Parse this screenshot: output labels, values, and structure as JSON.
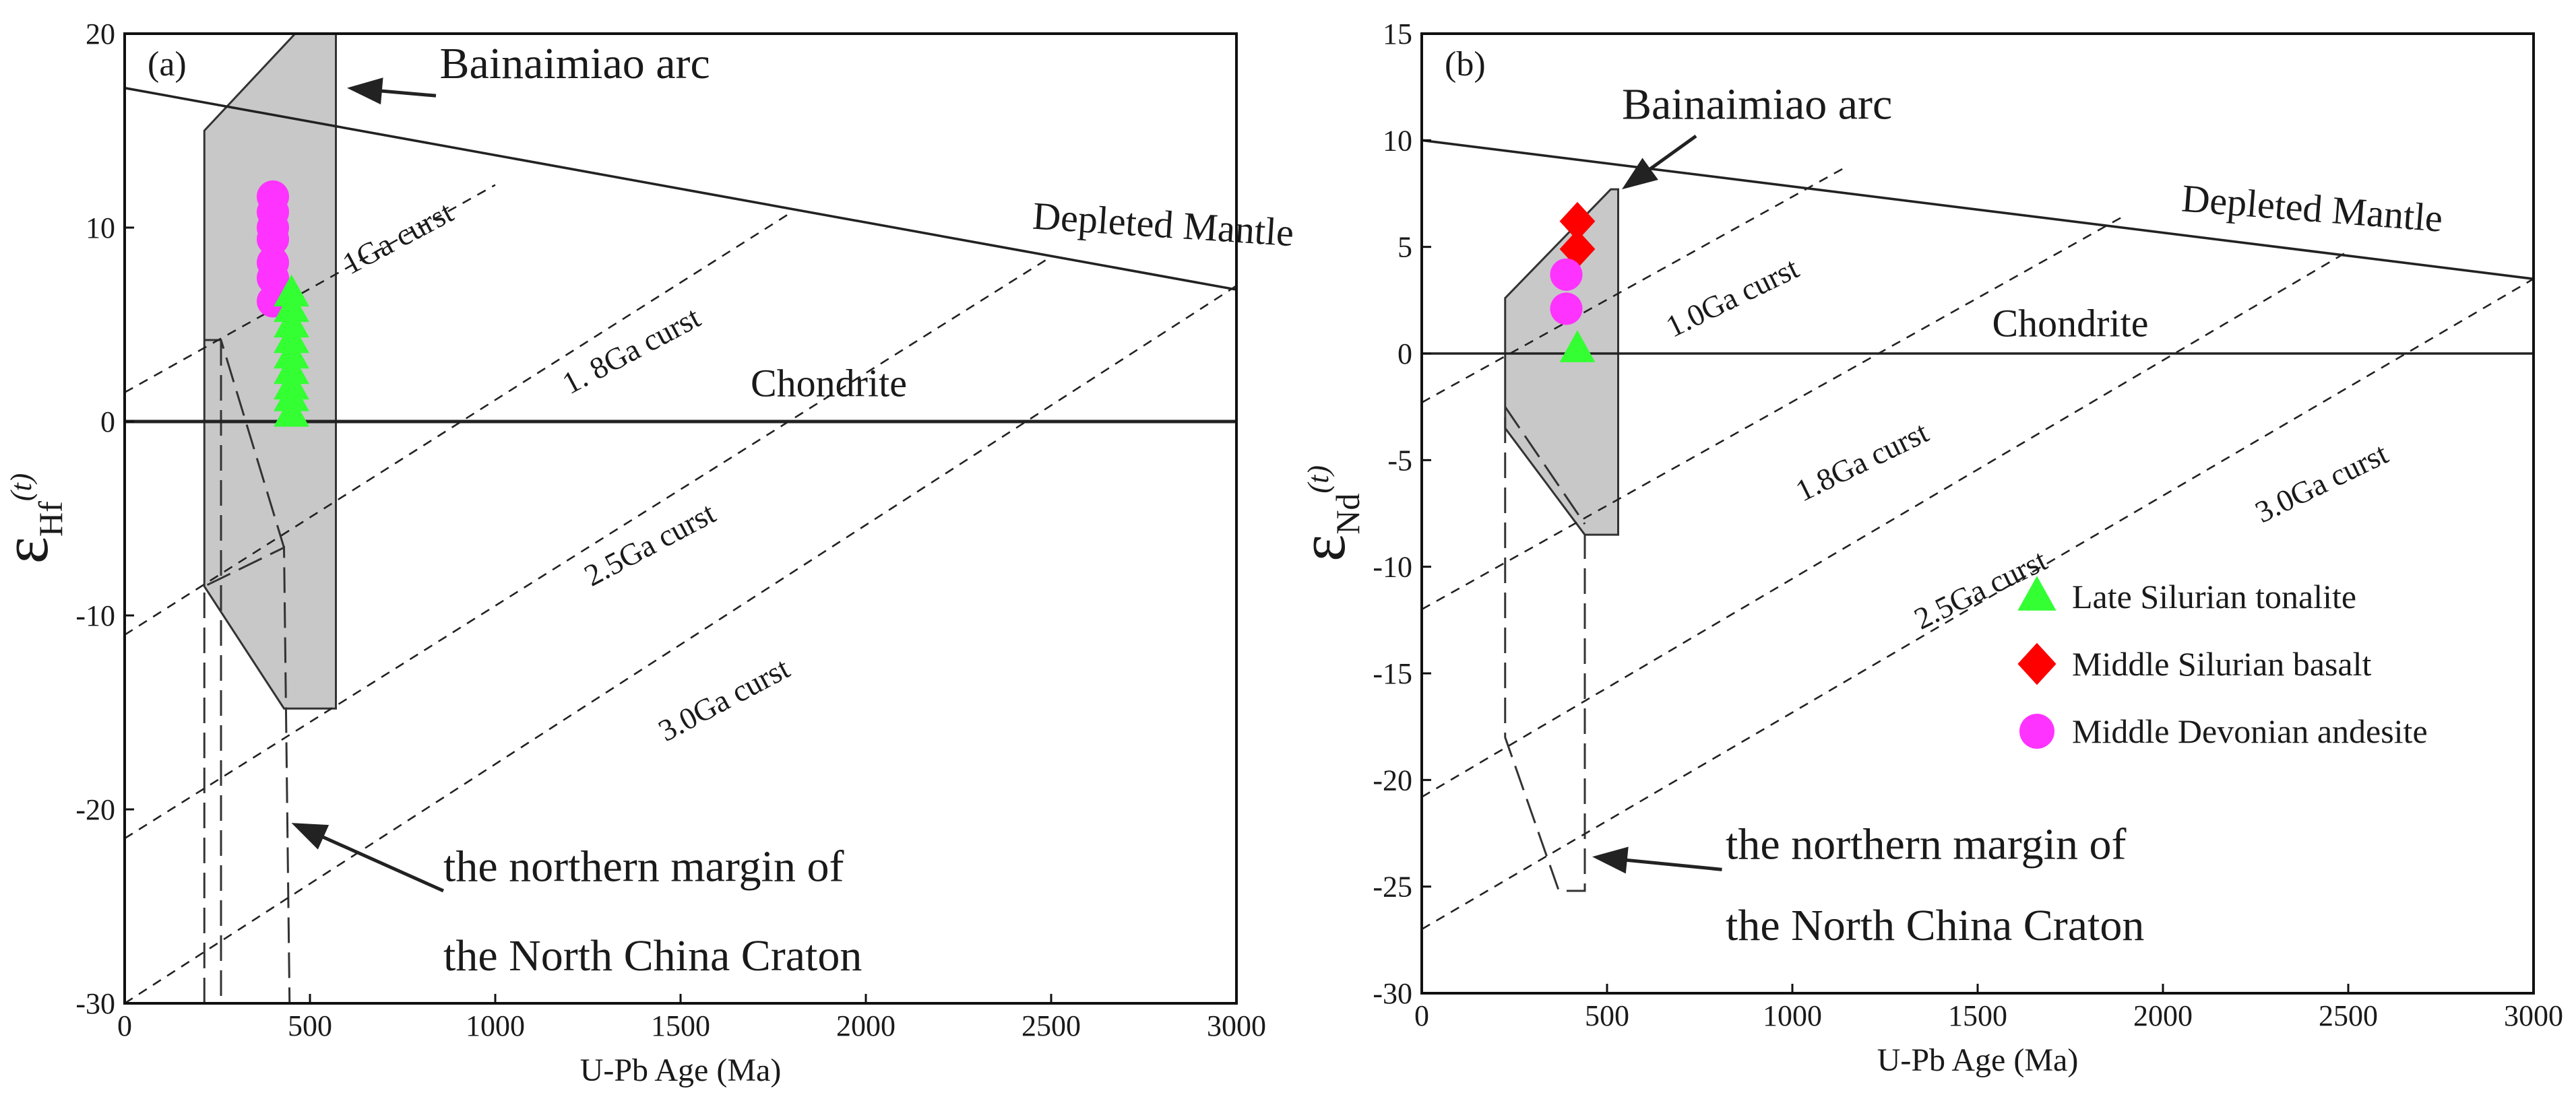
{
  "chart_data": [
    {
      "type": "scatter",
      "panel_label": "(a)",
      "xlabel": "U-Pb Age (Ma)",
      "ylabel_symbol": "ε",
      "ylabel_sub": "Hf",
      "ylabel_t": "(t)",
      "xlim": [
        0,
        3000
      ],
      "ylim": [
        -30,
        20
      ],
      "xticks": [
        "0",
        "500",
        "1000",
        "1500",
        "2000",
        "2500",
        "3000"
      ],
      "xtick_values": [
        0,
        500,
        1000,
        1500,
        2000,
        2500,
        3000
      ],
      "yticks": [
        "-30",
        "-20",
        "-10",
        "0",
        "10",
        "20"
      ],
      "ytick_values": [
        -30,
        -20,
        -10,
        0,
        10,
        20
      ],
      "reference_lines": [
        {
          "name": "Depleted Mantle",
          "label": "Depleted Mantle",
          "points": [
            [
              0,
              17.2
            ],
            [
              3000,
              6.8
            ]
          ],
          "style": "solid",
          "label_at": [
            2800,
            9.5
          ],
          "rotate": 3.8
        },
        {
          "name": "Chondrite",
          "label": "Chondrite",
          "points": [
            [
              0,
              0
            ],
            [
              3000,
              0
            ]
          ],
          "style": "solid",
          "label_at": [
            1900,
            1.3
          ],
          "rotate": 0
        },
        {
          "name": "1Ga curst",
          "label": "1Ga curst",
          "points": [
            [
              0,
              1.5
            ],
            [
              1000,
              12.2
            ]
          ],
          "style": "dashed",
          "label_at": [
            750,
            9
          ],
          "rotate": -28
        },
        {
          "name": "1.8Ga curst",
          "label": "1. 8Ga curst",
          "points": [
            [
              0,
              -11
            ],
            [
              1800,
              10.8
            ]
          ],
          "style": "dashed",
          "label_at": [
            1380,
            3.2
          ],
          "rotate": -28
        },
        {
          "name": "2.5Ga curst",
          "label": "2.5Ga curst",
          "points": [
            [
              0,
              -21.5
            ],
            [
              2500,
              8.5
            ]
          ],
          "style": "dashed",
          "label_at": [
            1430,
            -6.8
          ],
          "rotate": -28
        },
        {
          "name": "3.0Ga curst",
          "label": "3.0Ga curst",
          "points": [
            [
              0,
              -30
            ],
            [
              3000,
              7
            ]
          ],
          "style": "dashed",
          "label_at": [
            1630,
            -14.8
          ],
          "rotate": -28
        }
      ],
      "regions": [
        {
          "name": "Bainaimiao arc",
          "label": "Bainaimiao arc",
          "style": "filled",
          "polygon": [
            [
              215,
              15
            ],
            [
              460,
              20
            ],
            [
              570,
              20
            ],
            [
              570,
              -14.8
            ],
            [
              430,
              -14.8
            ],
            [
              215,
              -8.5
            ]
          ]
        },
        {
          "name": "the northern margin of the North China Craton",
          "label": "the northern margin of\nthe North China Craton",
          "style": "dashed",
          "polygon": [
            [
              215,
              -30
            ],
            [
              215,
              -8.5
            ],
            [
              430,
              -6.5
            ],
            [
              445,
              -30
            ]
          ]
        }
      ],
      "region_inner_dashes": [
        {
          "points": [
            [
              215,
              4.2
            ],
            [
              260,
              4.2
            ],
            [
              430,
              -6.5
            ]
          ]
        },
        {
          "points": [
            [
              260,
              4.2
            ],
            [
              260,
              -30
            ]
          ]
        }
      ],
      "annotations": [
        {
          "text": "Bainaimiao arc",
          "at": [
            850,
            17.7
          ],
          "arrow_from": [
            840,
            16.8
          ],
          "arrow_to": [
            600,
            17.2
          ]
        },
        {
          "text": "the northern margin of",
          "at": [
            860,
            -23.7
          ],
          "arrow_from": [
            860,
            -24.2
          ],
          "arrow_to": [
            450,
            -20.7
          ]
        },
        {
          "text": "the North China Craton",
          "at": [
            860,
            -28.3
          ]
        }
      ],
      "series": [
        {
          "name": "Middle Devonian andesite",
          "marker": "circle",
          "color": "#ff33ff",
          "points": [
            [
              400,
              11.6
            ],
            [
              400,
              10.8
            ],
            [
              400,
              10.0
            ],
            [
              400,
              9.4
            ],
            [
              400,
              8.2
            ],
            [
              400,
              7.4
            ],
            [
              400,
              6.2
            ]
          ]
        },
        {
          "name": "Late Silurian tonalite",
          "marker": "triangle",
          "color": "#33ff33",
          "points": [
            [
              450,
              6.6
            ],
            [
              450,
              5.8
            ],
            [
              450,
              5.0
            ],
            [
              450,
              4.2
            ],
            [
              450,
              3.4
            ],
            [
              450,
              2.6
            ],
            [
              450,
              1.8
            ],
            [
              450,
              1.2
            ],
            [
              450,
              0.4
            ]
          ]
        }
      ]
    },
    {
      "type": "scatter",
      "panel_label": "(b)",
      "xlabel": "U-Pb Age (Ma)",
      "ylabel_symbol": "ε",
      "ylabel_sub": "Nd",
      "ylabel_t": "(t)",
      "xlim": [
        0,
        3000
      ],
      "ylim": [
        -30,
        15
      ],
      "xticks": [
        "0",
        "500",
        "1000",
        "1500",
        "2000",
        "2500",
        "3000"
      ],
      "xtick_values": [
        0,
        500,
        1000,
        1500,
        2000,
        2500,
        3000
      ],
      "yticks": [
        "-30",
        "-25",
        "-20",
        "-15",
        "-10",
        "-5",
        "0",
        "5",
        "10",
        "15"
      ],
      "ytick_values": [
        -30,
        -25,
        -20,
        -15,
        -10,
        -5,
        0,
        5,
        10,
        15
      ],
      "reference_lines": [
        {
          "name": "Depleted Mantle",
          "label": "Depleted Mantle",
          "points": [
            [
              0,
              10
            ],
            [
              3000,
              3.5
            ]
          ],
          "style": "solid",
          "label_at": [
            2400,
            6.2
          ],
          "rotate": 4.5
        },
        {
          "name": "Chondrite",
          "label": "Chondrite",
          "points": [
            [
              0,
              0
            ],
            [
              3000,
              0
            ]
          ],
          "style": "solid",
          "label_at": [
            1750,
            0.8
          ],
          "rotate": 0
        },
        {
          "name": "1.0Ga curst",
          "label": "1.0Ga curst",
          "points": [
            [
              0,
              -2.3
            ],
            [
              1150,
              8.8
            ]
          ],
          "style": "dashed",
          "label_at": [
            850,
            2.2
          ],
          "rotate": -26
        },
        {
          "name": "1.8Ga curst",
          "label": "1.8Ga curst",
          "points": [
            [
              0,
              -12
            ],
            [
              1900,
              6.5
            ]
          ],
          "style": "dashed",
          "label_at": [
            1200,
            -5.5
          ],
          "rotate": -26
        },
        {
          "name": "2.5Ga curst",
          "label": "2.5Ga curst",
          "points": [
            [
              0,
              -20.8
            ],
            [
              2500,
              4.8
            ]
          ],
          "style": "dashed",
          "label_at": [
            1520,
            -11.5
          ],
          "rotate": -26
        },
        {
          "name": "3.0Ga curst",
          "label": "3.0Ga curst",
          "points": [
            [
              0,
              -27
            ],
            [
              3000,
              3.5
            ]
          ],
          "style": "dashed",
          "label_at": [
            2440,
            -6.5
          ],
          "rotate": -26
        }
      ],
      "regions": [
        {
          "name": "Bainaimiao arc",
          "label": "Bainaimiao arc",
          "style": "filled",
          "polygon": [
            [
              225,
              2.6
            ],
            [
              510,
              7.7
            ],
            [
              530,
              7.7
            ],
            [
              530,
              -8.5
            ],
            [
              440,
              -8.5
            ],
            [
              225,
              -3.5
            ]
          ]
        },
        {
          "name": "the northern margin of the North China Craton",
          "label": "the northern margin of\nthe North China Craton",
          "style": "dashed",
          "polygon": [
            [
              225,
              -3
            ],
            [
              225,
              -18
            ],
            [
              370,
              -25.2
            ],
            [
              440,
              -25.2
            ],
            [
              440,
              -8.5
            ]
          ]
        }
      ],
      "region_inner_dashes": [
        {
          "points": [
            [
              225,
              -2.5
            ],
            [
              440,
              -8
            ]
          ]
        }
      ],
      "annotations": [
        {
          "text": "Bainaimiao arc",
          "at": [
            540,
            11
          ],
          "arrow_from": [
            740,
            10.2
          ],
          "arrow_to": [
            540,
            7.7
          ]
        },
        {
          "text": "the northern margin of",
          "at": [
            820,
            -23.7
          ],
          "arrow_from": [
            810,
            -24.2
          ],
          "arrow_to": [
            460,
            -23.6
          ]
        },
        {
          "text": "the North China Craton",
          "at": [
            820,
            -27.5
          ]
        }
      ],
      "series": [
        {
          "name": "Late Silurian tonalite",
          "marker": "triangle",
          "color": "#33ff33",
          "points": [
            [
              420,
              0.2
            ]
          ]
        },
        {
          "name": "Middle Silurian basalt",
          "marker": "diamond",
          "color": "#ff0000",
          "points": [
            [
              420,
              6.2
            ],
            [
              420,
              4.9
            ]
          ]
        },
        {
          "name": "Middle Devonian andesite",
          "marker": "circle",
          "color": "#ff33ff",
          "points": [
            [
              390,
              3.7
            ],
            [
              390,
              2.1
            ]
          ]
        }
      ],
      "legend": {
        "position": "lower-right",
        "entries": [
          {
            "label": "Late Silurian tonalite",
            "marker": "triangle",
            "color": "#33ff33"
          },
          {
            "label": "Middle Silurian basalt",
            "marker": "diamond",
            "color": "#ff0000"
          },
          {
            "label": "Middle Devonian andesite",
            "marker": "circle",
            "color": "#ff33ff"
          }
        ]
      }
    }
  ]
}
